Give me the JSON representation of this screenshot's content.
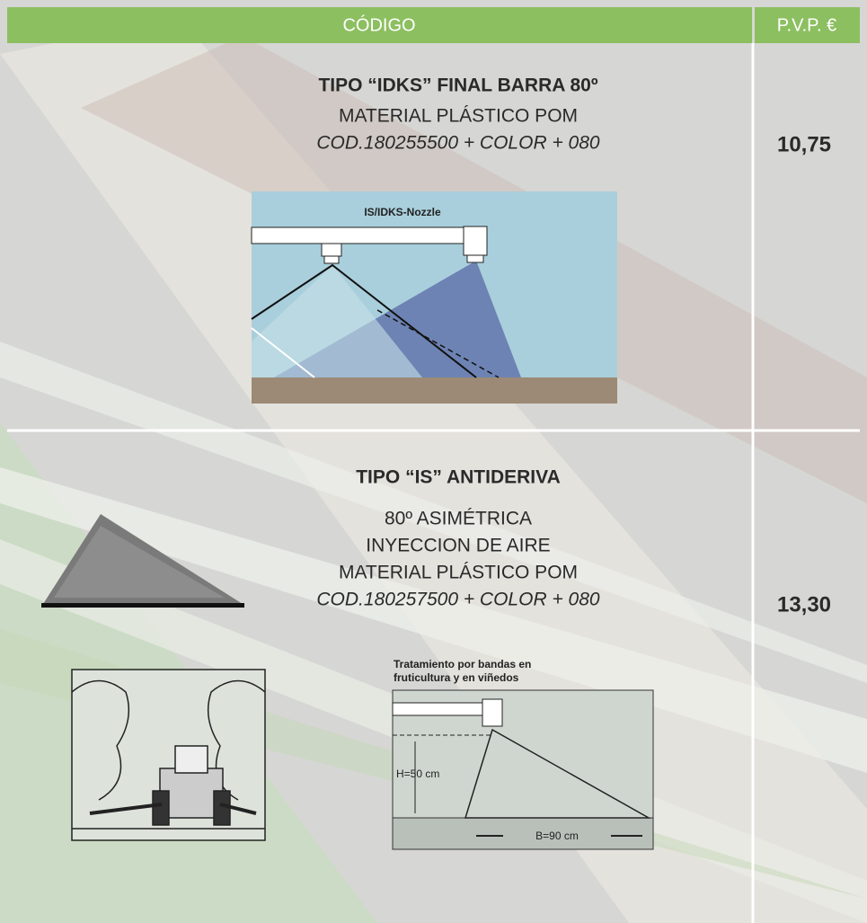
{
  "header": {
    "code": "CÓDIGO",
    "price": "P.V.P. €"
  },
  "rows": [
    {
      "title": "TIPO “IDKS” FINAL BARRA 80º",
      "lines": [
        "MATERIAL PLÁSTICO POM"
      ],
      "code": "COD.180255500 + COLOR + 080",
      "price": "10,75",
      "figure_labels": [
        "IS/IDKS-Nozzle"
      ]
    },
    {
      "title": "TIPO “IS” ANTIDERIVA",
      "lines": [
        "80º ASIMÉTRICA",
        "INYECCION DE AIRE",
        "MATERIAL PLÁSTICO POM"
      ],
      "code": "COD.180257500 + COLOR + 080",
      "price": "13,30",
      "figure_labels": [
        "Tratamiento por bandas en",
        "fruticultura y en viñedos",
        "H=50 cm",
        "B=90 cm"
      ]
    }
  ]
}
